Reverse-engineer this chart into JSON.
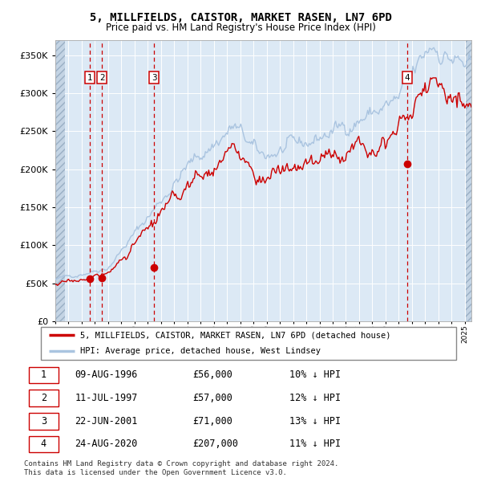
{
  "title": "5, MILLFIELDS, CAISTOR, MARKET RASEN, LN7 6PD",
  "subtitle": "Price paid vs. HM Land Registry's House Price Index (HPI)",
  "ylim": [
    0,
    370000
  ],
  "yticks": [
    0,
    50000,
    100000,
    150000,
    200000,
    250000,
    300000,
    350000
  ],
  "hpi_color": "#aac4e0",
  "price_color": "#cc0000",
  "dot_color": "#cc0000",
  "sale_dates_num": [
    1996.6,
    1997.53,
    2001.47,
    2020.65
  ],
  "sale_prices": [
    56000,
    57000,
    71000,
    207000
  ],
  "sale_labels": [
    "1",
    "2",
    "3",
    "4"
  ],
  "vline_color": "#cc0000",
  "background_color": "#dce9f5",
  "legend_label_price": "5, MILLFIELDS, CAISTOR, MARKET RASEN, LN7 6PD (detached house)",
  "legend_label_hpi": "HPI: Average price, detached house, West Lindsey",
  "table_data": [
    [
      "1",
      "09-AUG-1996",
      "£56,000",
      "10% ↓ HPI"
    ],
    [
      "2",
      "11-JUL-1997",
      "£57,000",
      "12% ↓ HPI"
    ],
    [
      "3",
      "22-JUN-2001",
      "£71,000",
      "13% ↓ HPI"
    ],
    [
      "4",
      "24-AUG-2020",
      "£207,000",
      "11% ↓ HPI"
    ]
  ],
  "footnote": "Contains HM Land Registry data © Crown copyright and database right 2024.\nThis data is licensed under the Open Government Licence v3.0.",
  "x_start_year": 1994,
  "x_end_year": 2025
}
